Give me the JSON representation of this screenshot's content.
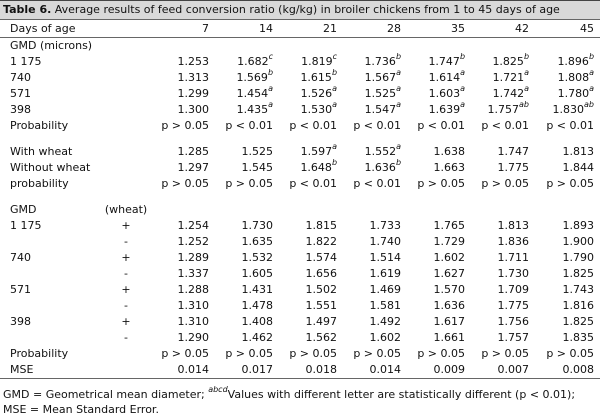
{
  "caption": {
    "label": "Table 6.",
    "text": " Average results of feed conversion ratio (kg/kg) in broiler chickens from 1 to 45 days of age"
  },
  "header": {
    "label": "Days of age",
    "days": [
      "7",
      "14",
      "21",
      "28",
      "35",
      "42",
      "45"
    ]
  },
  "sections": [
    {
      "rows": [
        {
          "label": "GMD (microns)",
          "group": "",
          "cells": []
        },
        {
          "label": "1 175",
          "group": "",
          "cells": [
            {
              "v": "1.253",
              "s": ""
            },
            {
              "v": "1.682",
              "s": "c"
            },
            {
              "v": "1.819",
              "s": "c"
            },
            {
              "v": "1.736",
              "s": "b"
            },
            {
              "v": "1.747",
              "s": "b"
            },
            {
              "v": "1.825",
              "s": "b"
            },
            {
              "v": "1.896",
              "s": "b"
            }
          ]
        },
        {
          "label": "740",
          "group": "",
          "cells": [
            {
              "v": "1.313",
              "s": ""
            },
            {
              "v": "1.569",
              "s": "b"
            },
            {
              "v": "1.615",
              "s": "b"
            },
            {
              "v": "1.567",
              "s": "a"
            },
            {
              "v": "1.614",
              "s": "a"
            },
            {
              "v": "1.721",
              "s": "a"
            },
            {
              "v": "1.808",
              "s": "a"
            }
          ]
        },
        {
          "label": "571",
          "group": "",
          "cells": [
            {
              "v": "1.299",
              "s": ""
            },
            {
              "v": "1.454",
              "s": "a"
            },
            {
              "v": "1.526",
              "s": "a"
            },
            {
              "v": "1.525",
              "s": "a"
            },
            {
              "v": "1.603",
              "s": "a"
            },
            {
              "v": "1.742",
              "s": "a"
            },
            {
              "v": "1.780",
              "s": "a"
            }
          ]
        },
        {
          "label": "398",
          "group": "",
          "cells": [
            {
              "v": "1.300",
              "s": ""
            },
            {
              "v": "1.435",
              "s": "a"
            },
            {
              "v": "1.530",
              "s": "a"
            },
            {
              "v": "1.547",
              "s": "a"
            },
            {
              "v": "1.639",
              "s": "a"
            },
            {
              "v": "1.757",
              "s": "ab"
            },
            {
              "v": "1.830",
              "s": "ab"
            }
          ]
        },
        {
          "label": "Probability",
          "group": "",
          "cells": [
            {
              "v": "p > 0.05",
              "s": ""
            },
            {
              "v": "p < 0.01",
              "s": ""
            },
            {
              "v": "p < 0.01",
              "s": ""
            },
            {
              "v": "p < 0.01",
              "s": ""
            },
            {
              "v": "p < 0.01",
              "s": ""
            },
            {
              "v": "p < 0.01",
              "s": ""
            },
            {
              "v": "p < 0.01",
              "s": ""
            }
          ]
        }
      ]
    },
    {
      "rows": [
        {
          "label": "With wheat",
          "group": "",
          "cells": [
            {
              "v": "1.285",
              "s": ""
            },
            {
              "v": "1.525",
              "s": ""
            },
            {
              "v": "1.597",
              "s": "a"
            },
            {
              "v": "1.552",
              "s": "a"
            },
            {
              "v": "1.638",
              "s": ""
            },
            {
              "v": "1.747",
              "s": ""
            },
            {
              "v": "1.813",
              "s": ""
            }
          ]
        },
        {
          "label": "Without wheat",
          "group": "",
          "cells": [
            {
              "v": "1.297",
              "s": ""
            },
            {
              "v": "1.545",
              "s": ""
            },
            {
              "v": "1.648",
              "s": "b"
            },
            {
              "v": "1.636",
              "s": "b"
            },
            {
              "v": "1.663",
              "s": ""
            },
            {
              "v": "1.775",
              "s": ""
            },
            {
              "v": "1.844",
              "s": ""
            }
          ]
        },
        {
          "label": "probability",
          "group": "",
          "cells": [
            {
              "v": "p > 0.05",
              "s": ""
            },
            {
              "v": "p > 0.05",
              "s": ""
            },
            {
              "v": "p < 0.01",
              "s": ""
            },
            {
              "v": "p < 0.01",
              "s": ""
            },
            {
              "v": "p > 0.05",
              "s": ""
            },
            {
              "v": "p > 0.05",
              "s": ""
            },
            {
              "v": "p > 0.05",
              "s": ""
            }
          ]
        }
      ]
    },
    {
      "rows": [
        {
          "label": "GMD",
          "group": "(wheat)",
          "cells": []
        },
        {
          "label": "1 175",
          "group": "+",
          "cells": [
            {
              "v": "1.254",
              "s": ""
            },
            {
              "v": "1.730",
              "s": ""
            },
            {
              "v": "1.815",
              "s": ""
            },
            {
              "v": "1.733",
              "s": ""
            },
            {
              "v": "1.765",
              "s": ""
            },
            {
              "v": "1.813",
              "s": ""
            },
            {
              "v": "1.893",
              "s": ""
            }
          ]
        },
        {
          "label": "",
          "group": "-",
          "cells": [
            {
              "v": "1.252",
              "s": ""
            },
            {
              "v": "1.635",
              "s": ""
            },
            {
              "v": "1.822",
              "s": ""
            },
            {
              "v": "1.740",
              "s": ""
            },
            {
              "v": "1.729",
              "s": ""
            },
            {
              "v": "1.836",
              "s": ""
            },
            {
              "v": "1.900",
              "s": ""
            }
          ]
        },
        {
          "label": "740",
          "group": "+",
          "cells": [
            {
              "v": "1.289",
              "s": ""
            },
            {
              "v": "1.532",
              "s": ""
            },
            {
              "v": "1.574",
              "s": ""
            },
            {
              "v": "1.514",
              "s": ""
            },
            {
              "v": "1.602",
              "s": ""
            },
            {
              "v": "1.711",
              "s": ""
            },
            {
              "v": "1.790",
              "s": ""
            }
          ]
        },
        {
          "label": "",
          "group": "-",
          "cells": [
            {
              "v": "1.337",
              "s": ""
            },
            {
              "v": "1.605",
              "s": ""
            },
            {
              "v": "1.656",
              "s": ""
            },
            {
              "v": "1.619",
              "s": ""
            },
            {
              "v": "1.627",
              "s": ""
            },
            {
              "v": "1.730",
              "s": ""
            },
            {
              "v": "1.825",
              "s": ""
            }
          ]
        },
        {
          "label": "571",
          "group": "+",
          "cells": [
            {
              "v": "1.288",
              "s": ""
            },
            {
              "v": "1.431",
              "s": ""
            },
            {
              "v": "1.502",
              "s": ""
            },
            {
              "v": "1.469",
              "s": ""
            },
            {
              "v": "1.570",
              "s": ""
            },
            {
              "v": "1.709",
              "s": ""
            },
            {
              "v": "1.743",
              "s": ""
            }
          ]
        },
        {
          "label": "",
          "group": "-",
          "cells": [
            {
              "v": "1.310",
              "s": ""
            },
            {
              "v": "1.478",
              "s": ""
            },
            {
              "v": "1.551",
              "s": ""
            },
            {
              "v": "1.581",
              "s": ""
            },
            {
              "v": "1.636",
              "s": ""
            },
            {
              "v": "1.775",
              "s": ""
            },
            {
              "v": "1.816",
              "s": ""
            }
          ]
        },
        {
          "label": "398",
          "group": "+",
          "cells": [
            {
              "v": "1.310",
              "s": ""
            },
            {
              "v": "1.408",
              "s": ""
            },
            {
              "v": "1.497",
              "s": ""
            },
            {
              "v": "1.492",
              "s": ""
            },
            {
              "v": "1.617",
              "s": ""
            },
            {
              "v": "1.756",
              "s": ""
            },
            {
              "v": "1.825",
              "s": ""
            }
          ]
        },
        {
          "label": "",
          "group": "-",
          "cells": [
            {
              "v": "1.290",
              "s": ""
            },
            {
              "v": "1.462",
              "s": ""
            },
            {
              "v": "1.562",
              "s": ""
            },
            {
              "v": "1.602",
              "s": ""
            },
            {
              "v": "1.661",
              "s": ""
            },
            {
              "v": "1.757",
              "s": ""
            },
            {
              "v": "1.835",
              "s": ""
            }
          ]
        },
        {
          "label": "Probability",
          "group": "",
          "cells": [
            {
              "v": "p > 0.05",
              "s": ""
            },
            {
              "v": "p > 0.05",
              "s": ""
            },
            {
              "v": "p > 0.05",
              "s": ""
            },
            {
              "v": "p > 0.05",
              "s": ""
            },
            {
              "v": "p > 0.05",
              "s": ""
            },
            {
              "v": "p > 0.05",
              "s": ""
            },
            {
              "v": "p > 0.05",
              "s": ""
            }
          ]
        },
        {
          "label": "MSE",
          "group": "",
          "cells": [
            {
              "v": "0.014",
              "s": ""
            },
            {
              "v": "0.017",
              "s": ""
            },
            {
              "v": "0.018",
              "s": ""
            },
            {
              "v": "0.014",
              "s": ""
            },
            {
              "v": "0.009",
              "s": ""
            },
            {
              "v": "0.007",
              "s": ""
            },
            {
              "v": "0.008",
              "s": ""
            }
          ]
        }
      ]
    }
  ],
  "footnote": {
    "part1": "GMD = Geometrical mean diameter; ",
    "sup": "abcd",
    "part2": "Values with different letter are statistically different (p < 0.01); MSE = Mean Standard Error."
  }
}
